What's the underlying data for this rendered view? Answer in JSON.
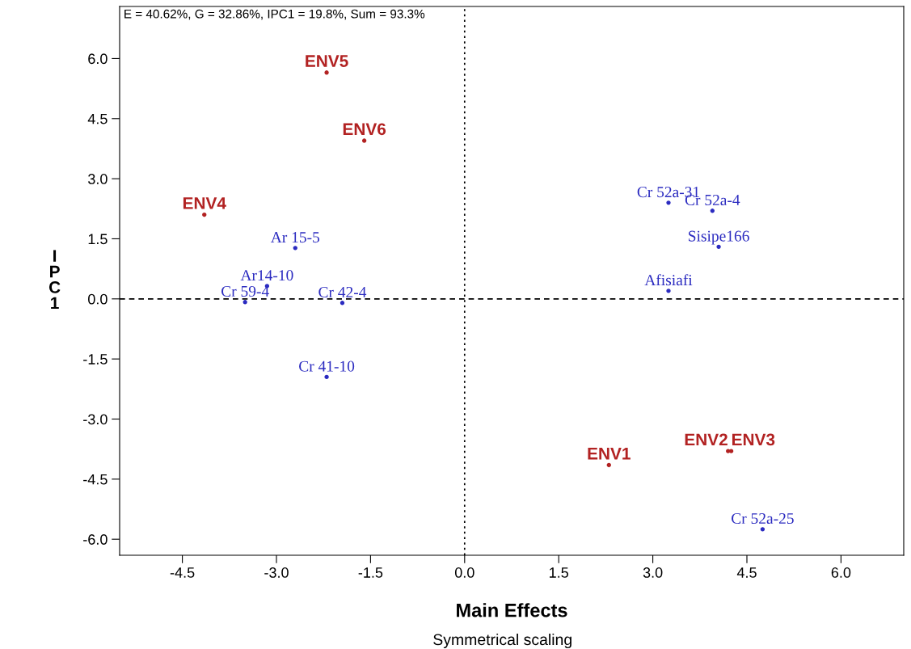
{
  "chart_data": {
    "type": "scatter",
    "xlabel": "Main Effects",
    "ylabel": "IPC1",
    "annotations": [
      "E = 40.62%, G = 32.86%, IPC1 = 19.8%, Sum = 93.3%",
      "Symmetrical scaling"
    ],
    "series": [
      {
        "color": "#b22222",
        "x": [
          2.3,
          4.2,
          4.25,
          -4.15,
          -2.2,
          -1.6
        ],
        "values": [
          -4.15,
          -3.8,
          -3.8,
          2.1,
          5.65,
          3.95
        ],
        "value_labels": [
          "ENV1",
          "ENV2",
          "ENV3",
          "ENV4",
          "ENV5",
          "ENV6"
        ]
      },
      {
        "color": "#2b2bc0",
        "x": [
          -2.7,
          -3.15,
          -3.5,
          -1.95,
          -2.2,
          3.25,
          3.95,
          4.05,
          3.25,
          4.75
        ],
        "values": [
          1.27,
          0.32,
          -0.08,
          -0.1,
          -1.95,
          2.4,
          2.2,
          1.3,
          0.2,
          -5.75
        ],
        "value_labels": [
          "Ar 15-5",
          "Ar14-10",
          "Cr 59-4",
          "Cr 42-4",
          "Cr 41-10",
          "Cr 52a-31",
          "Cr 52a-4",
          "Sisipe166",
          "Afisiafi",
          "Cr 52a-25"
        ]
      }
    ],
    "marker": "circle",
    "xlim": [
      -5.5,
      7.0
    ],
    "xticks": [
      {
        "value": -4.5,
        "label": "-4.5"
      },
      {
        "value": -3,
        "label": "-3.0"
      },
      {
        "value": -1.5,
        "label": "-1.5"
      },
      {
        "value": 0,
        "label": "0.0"
      },
      {
        "value": 1.5,
        "label": "1.5"
      },
      {
        "value": 3,
        "label": "3.0"
      },
      {
        "value": 4.5,
        "label": "4.5"
      },
      {
        "value": 6,
        "label": "6.0"
      }
    ],
    "ylim": [
      -6.4,
      7.3
    ],
    "yticks": [
      {
        "value": -6,
        "label": "-6.0"
      },
      {
        "value": -4.5,
        "label": "-4.5"
      },
      {
        "value": -3,
        "label": "-3.0"
      },
      {
        "value": -1.5,
        "label": "-1.5"
      },
      {
        "value": 0,
        "label": "0.0"
      },
      {
        "value": 1.5,
        "label": "1.5"
      },
      {
        "value": 3,
        "label": "3.0"
      },
      {
        "value": 4.5,
        "label": "4.5"
      },
      {
        "value": 6,
        "label": "6.0"
      }
    ],
    "ref_lines": [
      {
        "axis": "x",
        "value": 0,
        "line_style": "dotted",
        "color": "#000000"
      },
      {
        "axis": "y",
        "value": 0,
        "line_style": "dashed",
        "color": "#000000"
      }
    ],
    "grid": false,
    "legend": false
  }
}
